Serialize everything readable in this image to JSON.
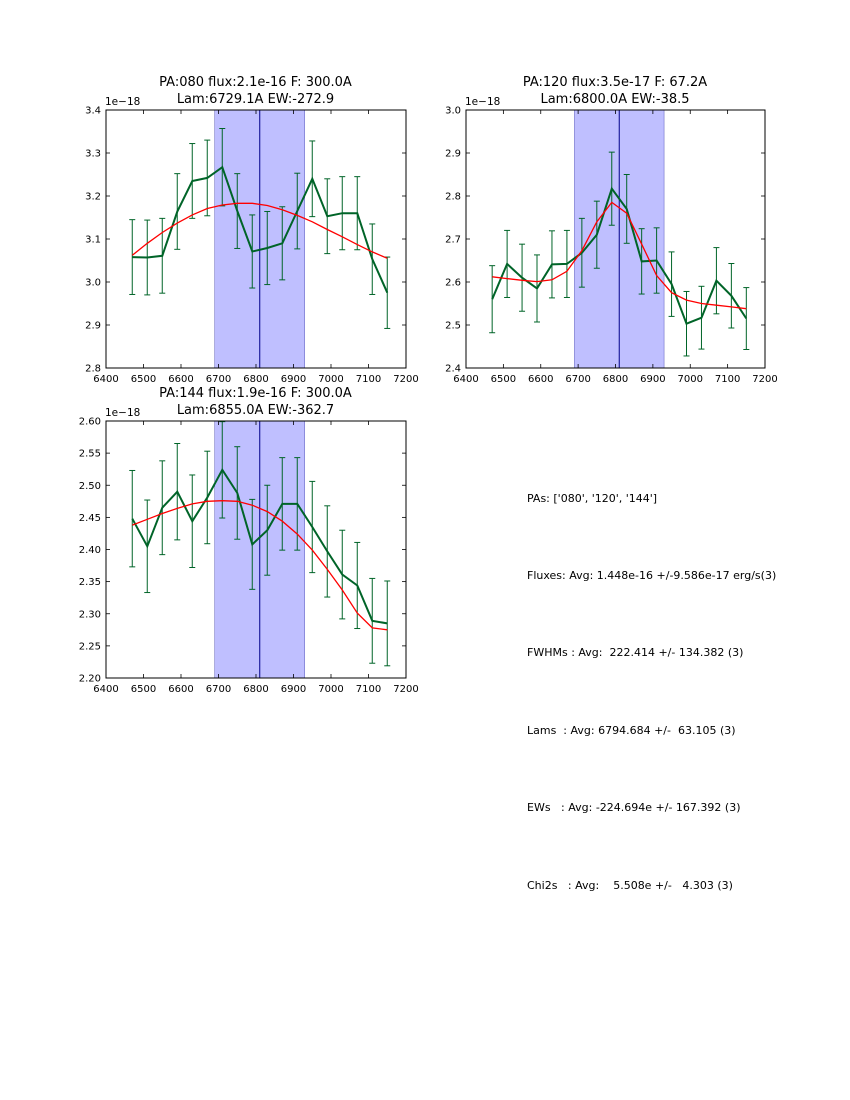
{
  "chart_data": [
    {
      "type": "line",
      "title_line1": "PA:080 flux:2.1e-16 F: 300.0A",
      "title_line2": "Lam:6729.1A EW:-272.9",
      "multiplier": "1e−18",
      "xlim": [
        6400,
        7200
      ],
      "ylim": [
        2.8,
        3.4
      ],
      "xticks": [
        "6400",
        "6500",
        "6600",
        "6700",
        "6800",
        "6900",
        "7000",
        "7100",
        "7200"
      ],
      "yticks": [
        "2.8",
        "2.9",
        "3.0",
        "3.1",
        "3.2",
        "3.3",
        "3.4"
      ],
      "band": [
        6690,
        6930
      ],
      "vline": 6810,
      "series": [
        {
          "color": "#006428",
          "x": [
            6470,
            6510,
            6550,
            6590,
            6630,
            6670,
            6710,
            6750,
            6790,
            6830,
            6870,
            6910,
            6950,
            6990,
            7030,
            7070,
            7110,
            7150
          ],
          "y": [
            3.058,
            3.057,
            3.061,
            3.164,
            3.235,
            3.242,
            3.267,
            3.165,
            3.071,
            3.079,
            3.09,
            3.165,
            3.24,
            3.153,
            3.16,
            3.16,
            3.053,
            2.975
          ],
          "err": [
            0.087,
            0.087,
            0.087,
            0.088,
            0.087,
            0.088,
            0.09,
            0.087,
            0.085,
            0.085,
            0.085,
            0.088,
            0.088,
            0.087,
            0.085,
            0.085,
            0.082,
            0.083
          ]
        },
        {
          "color": "#ff0000",
          "x": [
            6470,
            6510,
            6550,
            6590,
            6630,
            6670,
            6710,
            6750,
            6790,
            6830,
            6870,
            6910,
            6950,
            6990,
            7030,
            7070,
            7110,
            7150
          ],
          "y": [
            3.062,
            3.09,
            3.115,
            3.137,
            3.156,
            3.171,
            3.179,
            3.183,
            3.183,
            3.178,
            3.168,
            3.155,
            3.14,
            3.122,
            3.105,
            3.087,
            3.07,
            3.055
          ]
        }
      ]
    },
    {
      "type": "line",
      "title_line1": "PA:120 flux:3.5e-17 F: 67.2A",
      "title_line2": "Lam:6800.0A EW:-38.5",
      "multiplier": "1e−18",
      "xlim": [
        6400,
        7200
      ],
      "ylim": [
        2.4,
        3.0
      ],
      "xticks": [
        "6400",
        "6500",
        "6600",
        "6700",
        "6800",
        "6900",
        "7000",
        "7100",
        "7200"
      ],
      "yticks": [
        "2.4",
        "2.5",
        "2.6",
        "2.7",
        "2.8",
        "2.9",
        "3.0"
      ],
      "band": [
        6690,
        6930
      ],
      "vline": 6810,
      "series": [
        {
          "color": "#006428",
          "x": [
            6470,
            6510,
            6550,
            6590,
            6630,
            6670,
            6710,
            6750,
            6790,
            6830,
            6870,
            6910,
            6950,
            6990,
            7030,
            7070,
            7110,
            7150
          ],
          "y": [
            2.56,
            2.642,
            2.61,
            2.585,
            2.641,
            2.642,
            2.668,
            2.71,
            2.817,
            2.77,
            2.648,
            2.65,
            2.595,
            2.503,
            2.517,
            2.603,
            2.568,
            2.515
          ],
          "err": [
            0.078,
            0.078,
            0.078,
            0.078,
            0.078,
            0.078,
            0.08,
            0.078,
            0.085,
            0.08,
            0.076,
            0.076,
            0.075,
            0.075,
            0.073,
            0.077,
            0.075,
            0.072
          ]
        },
        {
          "color": "#ff0000",
          "x": [
            6470,
            6510,
            6550,
            6590,
            6630,
            6670,
            6710,
            6750,
            6790,
            6830,
            6870,
            6910,
            6950,
            6990,
            7030,
            7070,
            7110,
            7150
          ],
          "y": [
            2.612,
            2.608,
            2.604,
            2.601,
            2.605,
            2.625,
            2.673,
            2.74,
            2.785,
            2.76,
            2.688,
            2.615,
            2.575,
            2.558,
            2.55,
            2.546,
            2.542,
            2.538
          ]
        }
      ]
    },
    {
      "type": "line",
      "title_line1": "PA:144 flux:1.9e-16 F: 300.0A",
      "title_line2": "Lam:6855.0A EW:-362.7",
      "multiplier": "1e−18",
      "xlim": [
        6400,
        7200
      ],
      "ylim": [
        2.2,
        2.6
      ],
      "xticks": [
        "6400",
        "6500",
        "6600",
        "6700",
        "6800",
        "6900",
        "7000",
        "7100",
        "7200"
      ],
      "yticks": [
        "2.20",
        "2.25",
        "2.30",
        "2.35",
        "2.40",
        "2.45",
        "2.50",
        "2.55",
        "2.60"
      ],
      "band": [
        6690,
        6930
      ],
      "vline": 6810,
      "series": [
        {
          "color": "#006428",
          "x": [
            6470,
            6510,
            6550,
            6590,
            6630,
            6670,
            6710,
            6750,
            6790,
            6830,
            6870,
            6910,
            6950,
            6990,
            7030,
            7070,
            7110,
            7150
          ],
          "y": [
            2.448,
            2.405,
            2.465,
            2.49,
            2.444,
            2.481,
            2.524,
            2.488,
            2.408,
            2.43,
            2.471,
            2.471,
            2.435,
            2.397,
            2.361,
            2.344,
            2.289,
            2.285
          ],
          "err": [
            0.075,
            0.072,
            0.073,
            0.075,
            0.072,
            0.072,
            0.075,
            0.072,
            0.07,
            0.07,
            0.072,
            0.072,
            0.071,
            0.071,
            0.069,
            0.067,
            0.066,
            0.066
          ]
        },
        {
          "color": "#ff0000",
          "x": [
            6470,
            6510,
            6550,
            6590,
            6630,
            6670,
            6710,
            6750,
            6790,
            6830,
            6870,
            6910,
            6950,
            6990,
            7030,
            7070,
            7110,
            7150
          ],
          "y": [
            2.438,
            2.447,
            2.456,
            2.464,
            2.471,
            2.475,
            2.476,
            2.475,
            2.469,
            2.459,
            2.444,
            2.424,
            2.399,
            2.369,
            2.337,
            2.301,
            2.278,
            2.275
          ]
        }
      ]
    }
  ],
  "stats": [
    "PAs: ['080', '120', '144']",
    "Fluxes: Avg: 1.448e-16 +/-9.586e-17 erg/s(3)",
    "FWHMs : Avg:  222.414 +/- 134.382 (3)",
    "Lams  : Avg: 6794.684 +/-  63.105 (3)",
    "EWs   : Avg: -224.694e +/- 167.392 (3)",
    "Chi2s   : Avg:    5.508e +/-   4.303 (3)"
  ],
  "colors": {
    "band": "#bfbfff",
    "vline": "#00008b"
  }
}
